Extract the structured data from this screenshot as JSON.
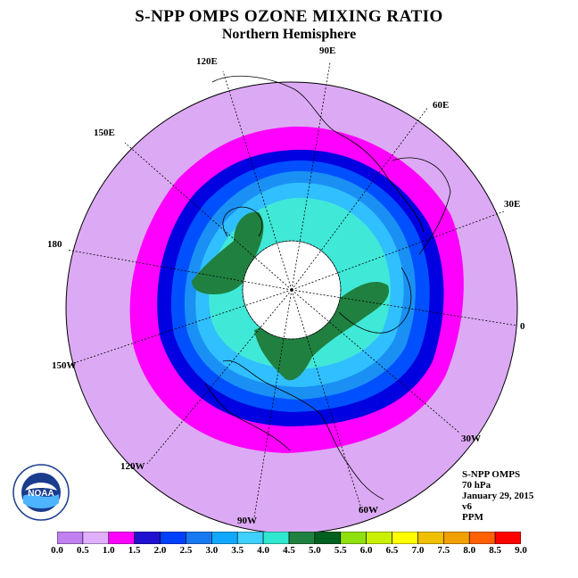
{
  "title": "S-NPP OMPS OZONE MIXING RATIO",
  "subtitle": "Northern Hemisphere",
  "longitude_labels": [
    "120E",
    "90E",
    "60E",
    "150E",
    "30E",
    "180",
    "0",
    "150W",
    "30W",
    "120W",
    "60W",
    "90W"
  ],
  "info": {
    "instrument": "S-NPP OMPS",
    "level": "70 hPa",
    "date": "January 29, 2015",
    "version": "v6",
    "units": "PPM"
  },
  "logo_text": "NOAA",
  "colorbar": {
    "ticks": [
      "0.0",
      "0.5",
      "1.0",
      "1.5",
      "2.0",
      "2.5",
      "3.0",
      "3.5",
      "4.0",
      "4.5",
      "5.0",
      "5.5",
      "6.0",
      "6.5",
      "7.0",
      "7.5",
      "8.0",
      "8.5",
      "9.0"
    ],
    "colors": [
      "#c080f0",
      "#e0b0ff",
      "#ff00ff",
      "#2010d0",
      "#0040ff",
      "#1878f0",
      "#10a8ff",
      "#40d0ff",
      "#30e8d0",
      "#208040",
      "#006020",
      "#90e010",
      "#c8f000",
      "#ffff00",
      "#f0c000",
      "#f0a000",
      "#ff6000",
      "#ff0000",
      "#805030"
    ]
  },
  "colors": {
    "background_ring": "#dcaaf4",
    "field_fill": "#cc99f0",
    "no_data_center": "#ffffff"
  }
}
